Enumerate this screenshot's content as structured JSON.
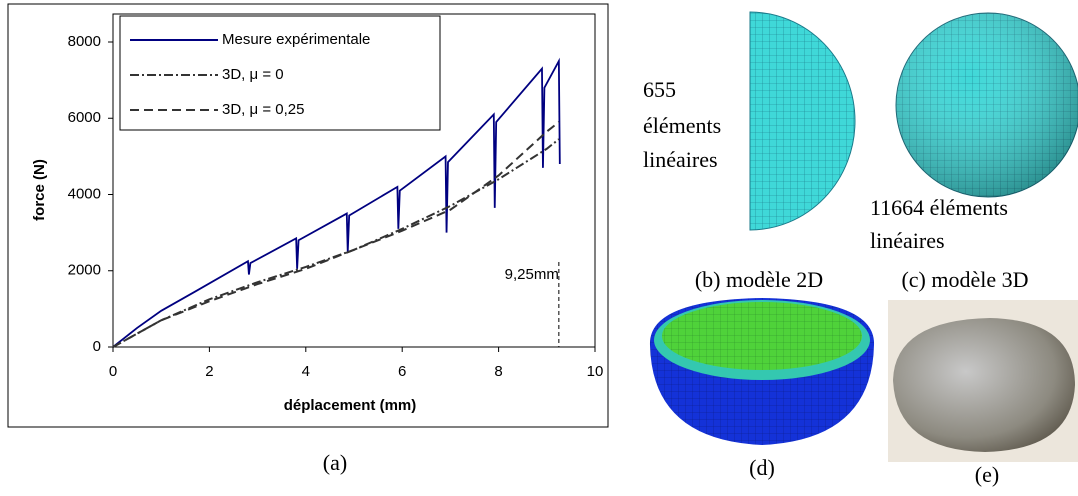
{
  "chart_data": {
    "type": "line",
    "xlabel": "déplacement (mm)",
    "ylabel": "force (N)",
    "xlim": [
      0,
      10
    ],
    "ylim": [
      0,
      8000
    ],
    "xticks": [
      0,
      2,
      4,
      6,
      8,
      10
    ],
    "yticks": [
      0,
      2000,
      4000,
      6000,
      8000
    ],
    "legend": "upper left",
    "annotation": {
      "text": "9,25mm",
      "x": 9.25
    },
    "series": [
      {
        "name": "Mesure expérimentale",
        "color": "#000080",
        "style": "solid",
        "x": [
          0,
          0.5,
          1,
          1.7,
          2.8,
          2.82,
          2.85,
          3.8,
          3.82,
          3.85,
          4.85,
          4.87,
          4.9,
          5.9,
          5.92,
          5.95,
          6.9,
          6.92,
          6.95,
          7.9,
          7.92,
          7.95,
          8.9,
          8.92,
          8.95,
          9.25,
          9.27
        ],
        "values": [
          0,
          500,
          950,
          1450,
          2250,
          1900,
          2200,
          2850,
          2050,
          2800,
          3500,
          2500,
          3450,
          4200,
          3100,
          4100,
          5000,
          3000,
          4850,
          6100,
          3650,
          5900,
          7300,
          4700,
          6800,
          7500,
          4800
        ]
      },
      {
        "name": "3D,  μ = 0",
        "color": "#333333",
        "style": "dashdot",
        "x": [
          0,
          1,
          2,
          3,
          4,
          5,
          6,
          7,
          8,
          9,
          9.25
        ],
        "values": [
          0,
          700,
          1250,
          1700,
          2100,
          2550,
          3100,
          3700,
          4400,
          5200,
          5450
        ]
      },
      {
        "name": "3D,  μ = 0,25",
        "color": "#333333",
        "style": "dashed",
        "x": [
          0,
          1,
          2,
          3,
          4,
          5,
          6,
          7,
          8,
          9,
          9.25
        ],
        "values": [
          0,
          700,
          1200,
          1650,
          2050,
          2550,
          3050,
          3600,
          4500,
          5650,
          5900
        ]
      }
    ]
  },
  "panels": {
    "a": "(a)",
    "b_count": "655",
    "b_elements": "éléments",
    "b_linear": "linéaires",
    "b_caption": "(b) modèle 2D",
    "c_elements": "11664 éléments",
    "c_linear": "linéaires",
    "c_caption": "(c) modèle 3D",
    "d": "(d)",
    "e": "(e)"
  }
}
